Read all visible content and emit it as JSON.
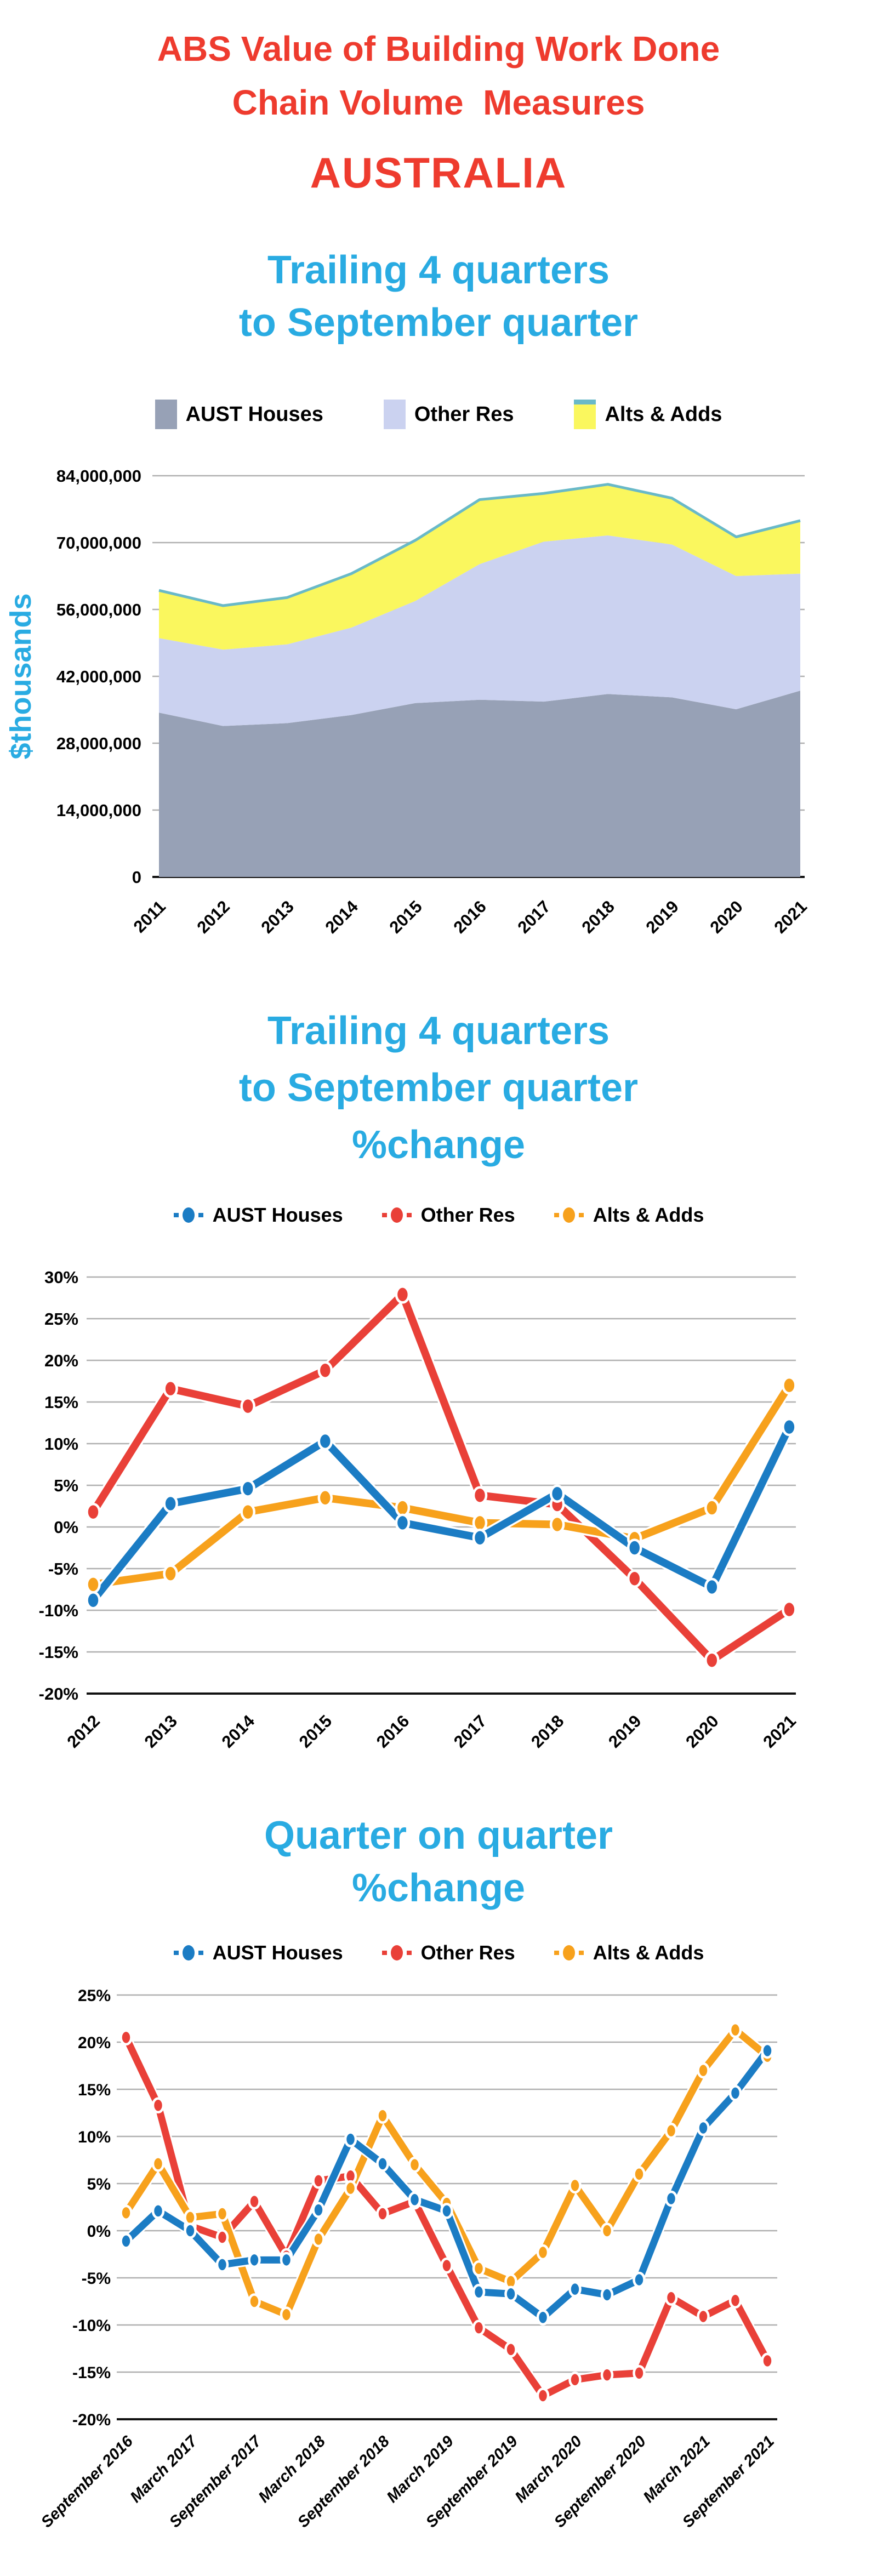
{
  "header": {
    "title_line1": "ABS Value of Building Work Done",
    "title_line2": "Chain Volume  Measures",
    "region": "AUSTRALIA"
  },
  "sections": {
    "s1": {
      "heading_line1": "Trailing 4 quarters",
      "heading_line2": "to September quarter"
    },
    "s2": {
      "heading_line1": "Trailing 4 quarters",
      "heading_line2": "to September quarter",
      "heading_line3": "%change"
    },
    "s3": {
      "heading_line1": "Quarter on quarter",
      "heading_line2": "%change"
    }
  },
  "colors": {
    "title_red": "#ee3b2e",
    "heading_blue": "#29abe2",
    "grid": "#b0b0b0",
    "axis": "#111111",
    "text": "#000000",
    "houses_area": "#97a1b6",
    "other_res_area": "#cbd2f0",
    "alts_adds_area": "#faf75e",
    "total_line": "#69b9c8",
    "houses_line": "#1b7cc4",
    "other_res_line": "#e94038",
    "alts_adds_line": "#f7a11c"
  },
  "chart_data": [
    {
      "type": "area",
      "stacked": true,
      "grid": true,
      "legend_position": "top",
      "title": "Trailing 4 quarters to September quarter",
      "ylabel": "$thousands",
      "categories": [
        "2011",
        "2012",
        "2013",
        "2014",
        "2015",
        "2016",
        "2017",
        "2018",
        "2019",
        "2020",
        "2021"
      ],
      "series": [
        {
          "name": "AUST Houses",
          "color": "#97a1b6",
          "values": [
            34400000,
            31600000,
            32200000,
            33900000,
            36400000,
            37100000,
            36700000,
            38300000,
            37600000,
            35100000,
            39000000
          ]
        },
        {
          "name": "Other Res",
          "color": "#cbd2f0",
          "values": [
            15600000,
            16000000,
            16500000,
            18300000,
            21400000,
            28400000,
            33500000,
            33200000,
            32000000,
            27900000,
            24500000
          ]
        },
        {
          "name": "Alts & Adds",
          "color": "#faf75e",
          "values": [
            10000000,
            9200000,
            9800000,
            11300000,
            12700000,
            13500000,
            10100000,
            10700000,
            9700000,
            8200000,
            11100000
          ]
        }
      ],
      "total_line_color": "#69b9c8",
      "ylim": [
        0,
        84000000
      ],
      "yticks": [
        {
          "value": 84000000,
          "label": "84,000,000"
        },
        {
          "value": 70000000,
          "label": "70,000,000"
        },
        {
          "value": 56000000,
          "label": "56,000,000"
        },
        {
          "value": 42000000,
          "label": "42,000,000"
        },
        {
          "value": 28000000,
          "label": "28,000,000"
        },
        {
          "value": 14000000,
          "label": "14,000,000"
        },
        {
          "value": 0,
          "label": "0"
        }
      ]
    },
    {
      "type": "line",
      "grid": true,
      "legend_position": "top",
      "title": "Trailing 4 quarters to September quarter %change",
      "categories": [
        "2012",
        "2013",
        "2014",
        "2015",
        "2016",
        "2017",
        "2018",
        "2019",
        "2020",
        "2021"
      ],
      "series": [
        {
          "name": "AUST Houses",
          "color": "#1b7cc4",
          "values": [
            -8.8,
            2.8,
            4.6,
            10.3,
            0.5,
            -1.3,
            4.0,
            -2.5,
            -7.2,
            12.0
          ]
        },
        {
          "name": "Other Res",
          "color": "#e94038",
          "values": [
            1.8,
            16.6,
            14.5,
            18.8,
            27.9,
            3.8,
            2.7,
            -6.2,
            -16.0,
            -9.9
          ]
        },
        {
          "name": "Alts & Adds",
          "color": "#f7a11c",
          "values": [
            -6.9,
            -5.6,
            1.8,
            3.5,
            2.3,
            0.5,
            0.3,
            -1.4,
            2.3,
            17.0
          ]
        }
      ],
      "ylim": [
        -20,
        30
      ],
      "yticks": [
        {
          "value": 30,
          "label": "30%"
        },
        {
          "value": 25,
          "label": "25%"
        },
        {
          "value": 20,
          "label": "20%"
        },
        {
          "value": 15,
          "label": "15%"
        },
        {
          "value": 10,
          "label": "10%"
        },
        {
          "value": 5,
          "label": "5%"
        },
        {
          "value": 0,
          "label": "0%"
        },
        {
          "value": -5,
          "label": "-5%"
        },
        {
          "value": -10,
          "label": "-10%"
        },
        {
          "value": -15,
          "label": "-15%"
        },
        {
          "value": -20,
          "label": "-20%"
        }
      ]
    },
    {
      "type": "line",
      "grid": true,
      "legend_position": "top",
      "title": "Quarter on quarter %change",
      "n_points": 21,
      "label_every": 2,
      "x_tick_labels": [
        "September 2016",
        "March 2017",
        "September 2017",
        "March 2018",
        "September 2018",
        "March 2019",
        "September 2019",
        "March 2020",
        "September 2020",
        "March 2021",
        "September 2021"
      ],
      "series": [
        {
          "name": "AUST Houses",
          "color": "#1b7cc4",
          "values": [
            -1.1,
            2.1,
            0.0,
            -3.6,
            -3.1,
            -3.1,
            2.2,
            9.7,
            7.1,
            3.3,
            2.1,
            -6.5,
            -6.7,
            -9.2,
            -6.2,
            -6.8,
            -5.2,
            3.4,
            10.9,
            14.6,
            19.1
          ]
        },
        {
          "name": "Other Res",
          "color": "#e94038",
          "values": [
            20.5,
            13.3,
            0.5,
            -0.7,
            3.1,
            -2.7,
            5.3,
            5.8,
            1.8,
            3.1,
            -3.7,
            -10.3,
            -12.6,
            -17.5,
            -15.8,
            -15.3,
            -15.1,
            -7.1,
            -9.1,
            -7.4,
            -13.8
          ]
        },
        {
          "name": "Alts & Adds",
          "color": "#f7a11c",
          "values": [
            1.9,
            7.1,
            1.4,
            1.8,
            -7.5,
            -8.9,
            -0.9,
            4.5,
            12.2,
            7.0,
            2.9,
            -4.0,
            -5.4,
            -2.3,
            4.8,
            0.0,
            6.0,
            10.6,
            17.0,
            21.3,
            18.5
          ]
        }
      ],
      "ylim": [
        -20,
        25
      ],
      "yticks": [
        {
          "value": 25,
          "label": "25%"
        },
        {
          "value": 20,
          "label": "20%"
        },
        {
          "value": 15,
          "label": "15%"
        },
        {
          "value": 10,
          "label": "10%"
        },
        {
          "value": 5,
          "label": "5%"
        },
        {
          "value": 0,
          "label": "0%"
        },
        {
          "value": -5,
          "label": "-5%"
        },
        {
          "value": -10,
          "label": "-10%"
        },
        {
          "value": -15,
          "label": "-15%"
        },
        {
          "value": -20,
          "label": "-20%"
        }
      ]
    }
  ]
}
